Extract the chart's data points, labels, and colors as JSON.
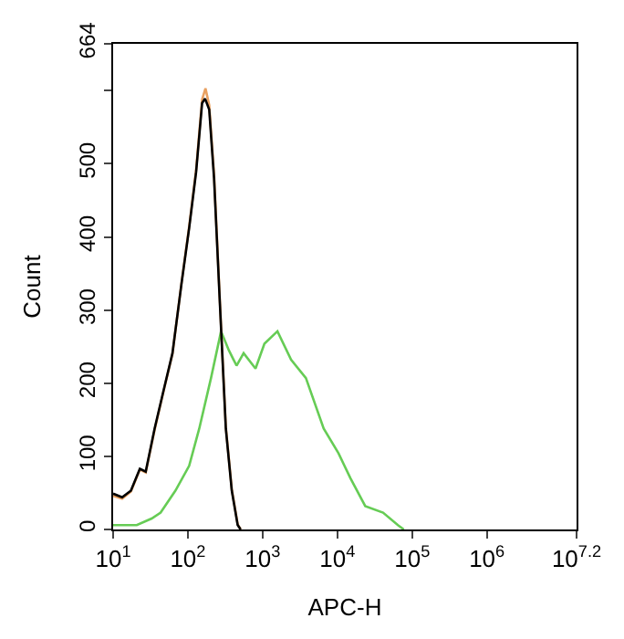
{
  "chart_data": {
    "type": "line",
    "xlabel": "APC-H",
    "ylabel": "Count",
    "log": "x",
    "marker": "none",
    "line_style": "solid",
    "xlim": [
      10,
      15848932
    ],
    "ylim": [
      0,
      664
    ],
    "xticks": [
      {
        "value": 10,
        "label": "10$^{1}$"
      },
      {
        "value": 100,
        "label": "10$^{2}$"
      },
      {
        "value": 1000,
        "label": "10$^{3}$"
      },
      {
        "value": 10000,
        "label": "10$^{4}$"
      },
      {
        "value": 100000,
        "label": "10$^{5}$"
      },
      {
        "value": 1000000,
        "label": "10$^{6}$"
      },
      {
        "value": 15848932,
        "label": "10$^{7.2}$"
      }
    ],
    "yticks": [
      0,
      100,
      200,
      300,
      400,
      500,
      {
        "value": 600,
        "label": null
      },
      664
    ],
    "series": [
      {
        "color": "#66cc55",
        "x": [
          10,
          20.7,
          32.8,
          43.2,
          68.1,
          104,
          142,
          204,
          278,
          353,
          448,
          557,
          804,
          1057,
          1579,
          2404,
          3793,
          6561,
          10370,
          14960,
          23600,
          40840,
          64570,
          77450
        ],
        "values": [
          6,
          6,
          15,
          23,
          53,
          87,
          138,
          207,
          271,
          245,
          224,
          241,
          220,
          254,
          271,
          232,
          207,
          138,
          104,
          70,
          32,
          23,
          6,
          0
        ]
      },
      {
        "color": "#e8a060",
        "x": [
          10,
          13.2,
          17.3,
          22.8,
          27.3,
          35.9,
          47.3,
          62.2,
          81.9,
          104,
          129,
          155,
          172,
          193,
          224,
          268,
          322,
          387,
          464,
          508
        ],
        "values": [
          46,
          42,
          52,
          82,
          78,
          136,
          189,
          240,
          336,
          414,
          492,
          588,
          603,
          580,
          485,
          312,
          140,
          55,
          7,
          0
        ]
      },
      {
        "color": "#000000",
        "x": [
          10,
          13.2,
          17.3,
          22.8,
          27.3,
          35.9,
          47.3,
          62.2,
          81.9,
          104,
          129,
          155,
          170,
          193,
          224,
          268,
          322,
          387,
          464,
          508
        ],
        "values": [
          49,
          44,
          53,
          83,
          79,
          138,
          190,
          241,
          335,
          412,
          489,
          583,
          589,
          574,
          480,
          309,
          138,
          53,
          6,
          0
        ]
      }
    ]
  }
}
